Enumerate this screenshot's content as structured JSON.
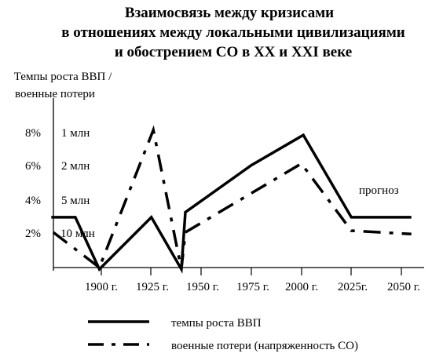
{
  "chart_data": {
    "type": "line",
    "title": [
      "Взаимосвязь между кризисами",
      "в отношениях между локальными цивилизациями",
      "и обострением СО в XX и XXI веке"
    ],
    "ylabel": [
      "Темпы роста ВВП /",
      "военные потери"
    ],
    "xlabel": "",
    "x_ticks": [
      "1900 г.",
      "1925 г.",
      "1950 г.",
      "1975 г.",
      "2000 г.",
      "2025г.",
      "2050 г."
    ],
    "y_ticks_left": [
      "2%",
      "4%",
      "6%",
      "8%"
    ],
    "y_ticks_right": [
      "10 млн",
      "5 млн",
      "2 млн",
      "1 млн"
    ],
    "xlim": [
      1875,
      2060
    ],
    "ylim": [
      0,
      9.5
    ],
    "series": [
      {
        "name": "темпы роста ВВП",
        "style": "solid",
        "x": [
          1875,
          1887,
          1899,
          1925,
          1940,
          1942,
          1975,
          2001,
          2025,
          2055
        ],
        "y": [
          3.0,
          3.0,
          -0.1,
          3.0,
          -0.1,
          3.3,
          6.1,
          7.9,
          3.0,
          3.0
        ]
      },
      {
        "name": "военные потери (напряженность СО)",
        "style": "dash-dot",
        "x": [
          1876,
          1899,
          1926,
          1940,
          1942,
          2000,
          2025,
          2055
        ],
        "y": [
          2.1,
          0.0,
          8.2,
          -0.1,
          2.1,
          6.2,
          2.2,
          2.0
        ]
      }
    ],
    "annotations": [
      {
        "text": "прогноз",
        "x": 2021,
        "y": 4.6
      }
    ],
    "grid": false,
    "legend_placement": "bottom",
    "colors": {
      "line": "#000000",
      "background": "#ffffff"
    }
  }
}
